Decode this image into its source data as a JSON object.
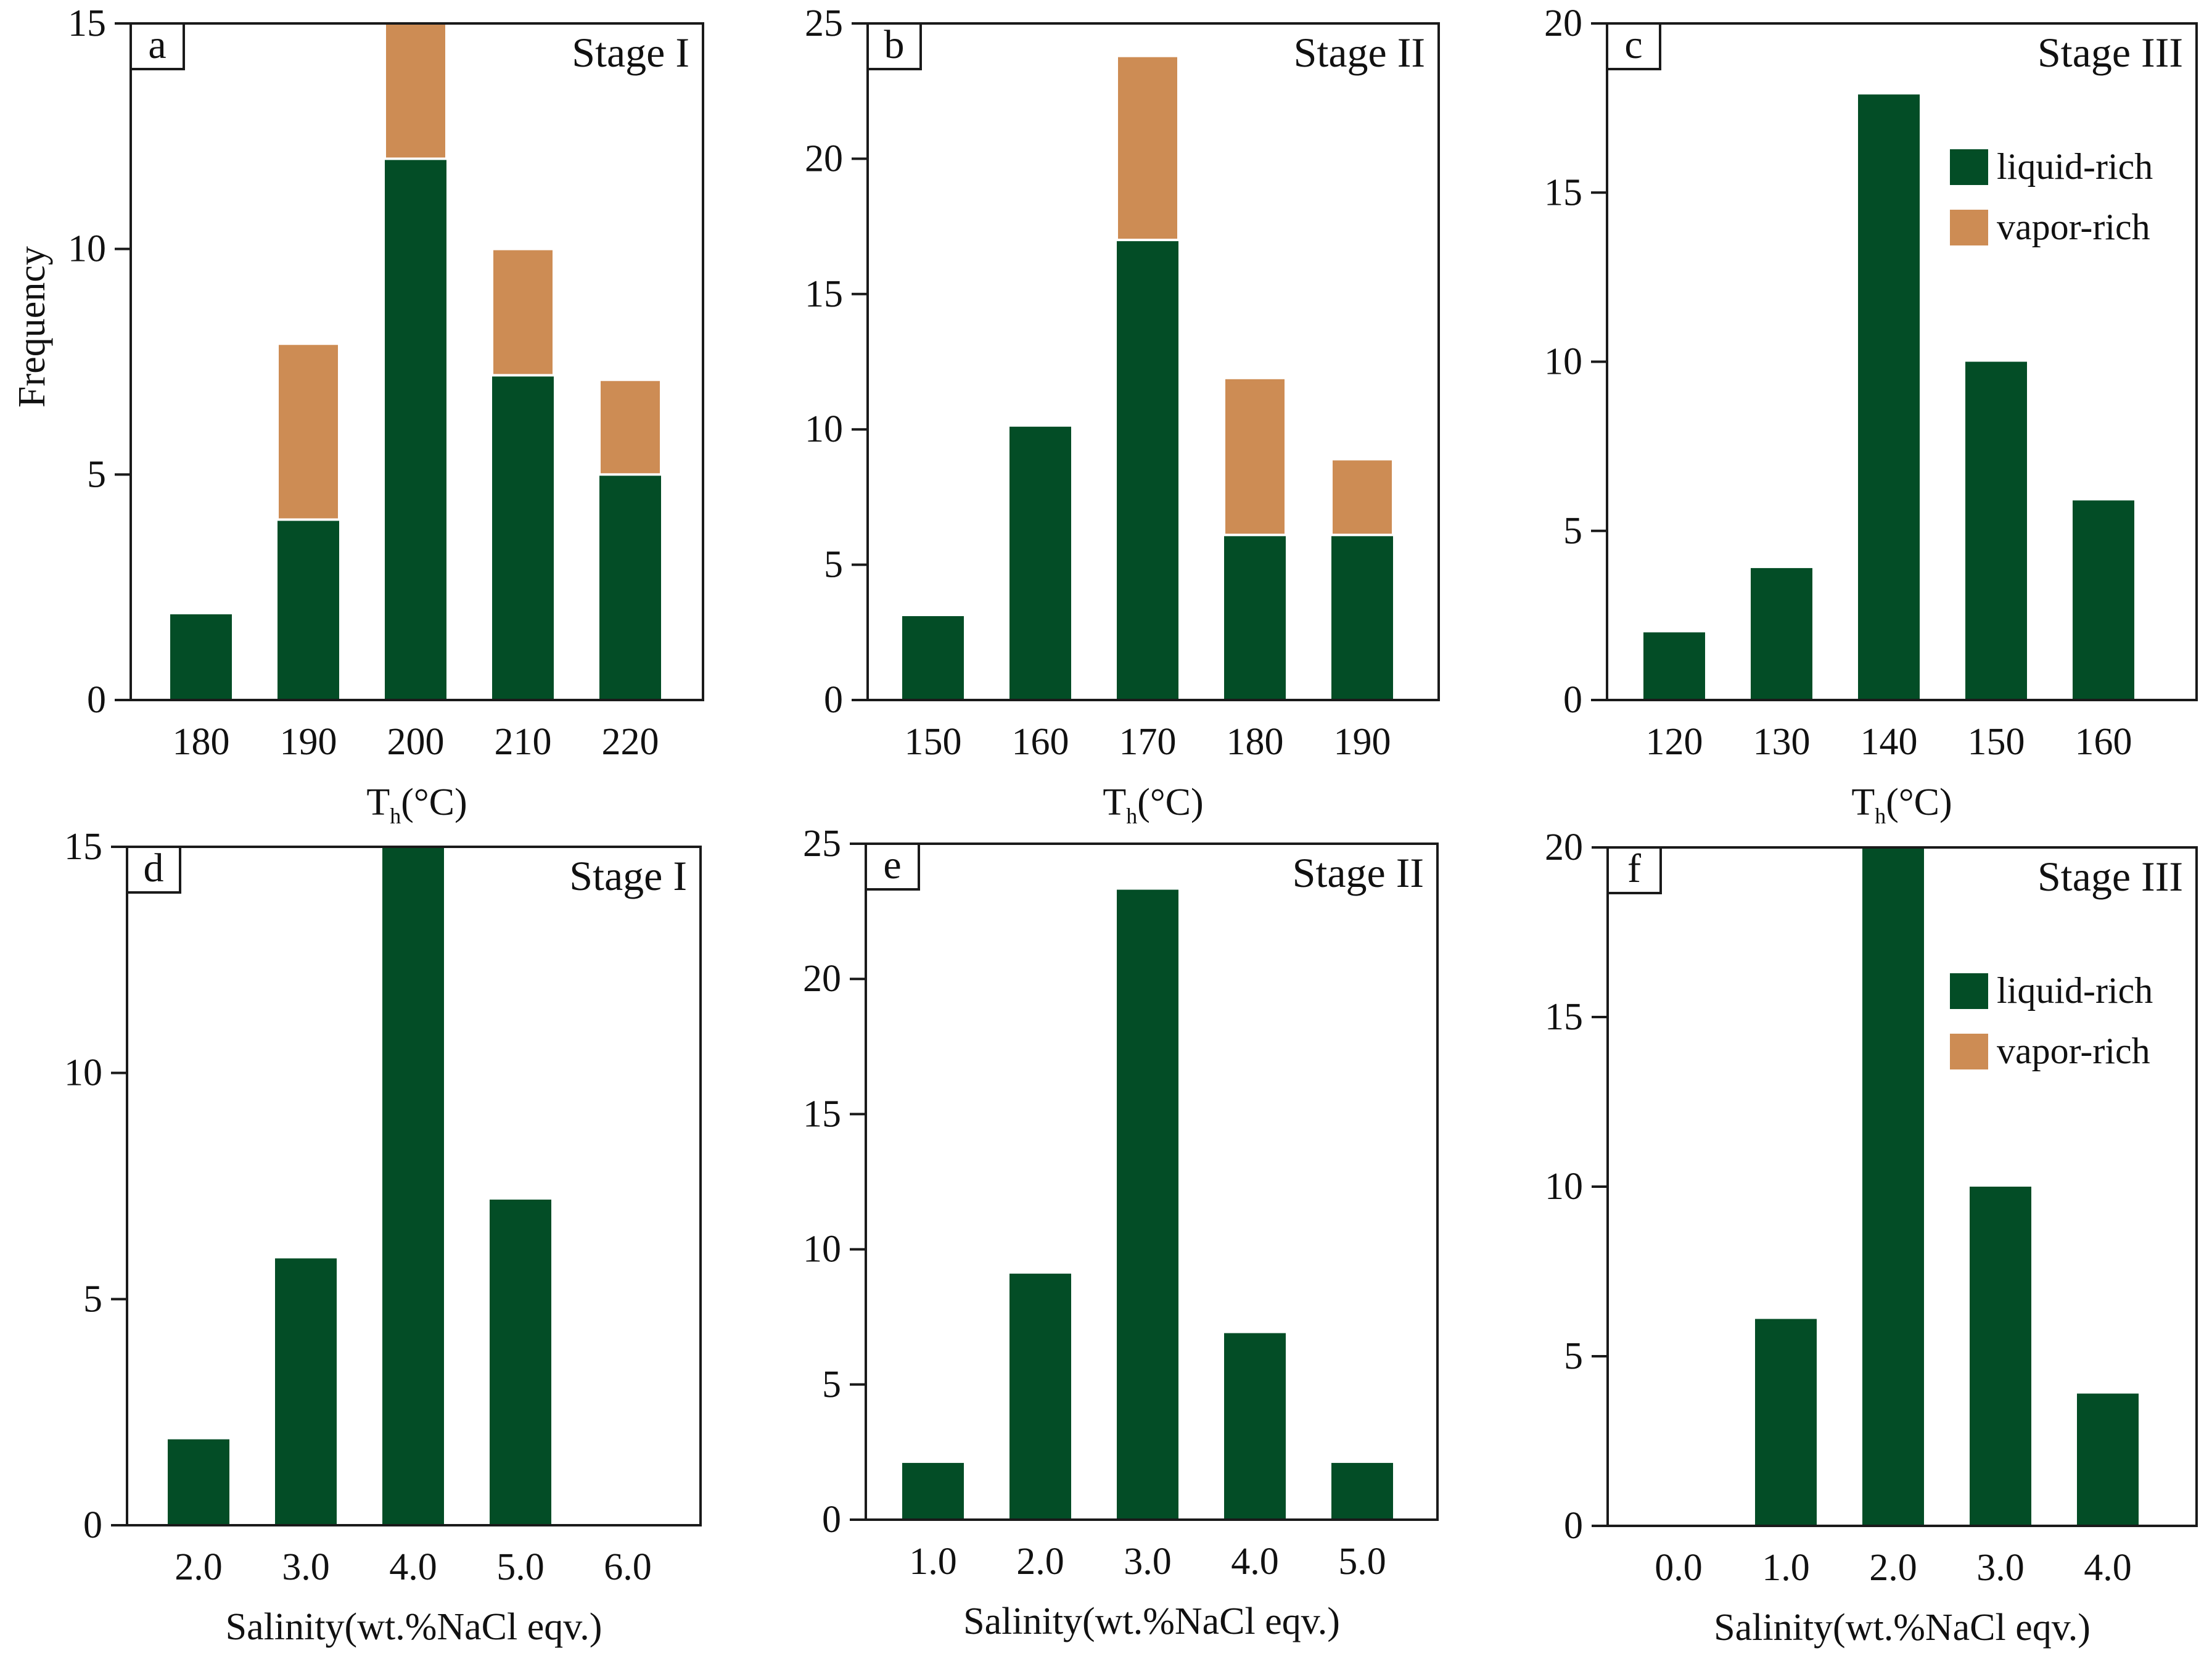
{
  "colors": {
    "liquid": "#034d26",
    "vapor": "#cd8c54",
    "axis": "#1a1a1a",
    "background": "#ffffff"
  },
  "y_axis_label": "Frequency",
  "legend": {
    "liquid": "liquid-rich",
    "vapor": "vapor-rich"
  },
  "chart_data": [
    {
      "panel": "a",
      "type": "bar",
      "stacked": true,
      "title": "Stage I",
      "xlabel_main": "T",
      "xlabel_sub": "h",
      "xlabel_unit": "(°C)",
      "ylabel": "Frequency",
      "ylim": [
        0,
        15
      ],
      "yticks": [
        0,
        5,
        10,
        15
      ],
      "categories": [
        "180",
        "190",
        "200",
        "210",
        "220"
      ],
      "series": [
        {
          "name": "liquid-rich",
          "values": [
            1.9,
            4.0,
            12.0,
            7.2,
            5.0
          ]
        },
        {
          "name": "vapor-rich",
          "values": [
            0,
            3.9,
            3.0,
            2.8,
            2.1
          ]
        }
      ]
    },
    {
      "panel": "b",
      "type": "bar",
      "stacked": true,
      "title": "Stage II",
      "xlabel_main": "T",
      "xlabel_sub": "h",
      "xlabel_unit": "(°C)",
      "ylabel": "",
      "ylim": [
        0,
        25
      ],
      "yticks": [
        0,
        5,
        10,
        15,
        20,
        25
      ],
      "categories": [
        "150",
        "160",
        "170",
        "180",
        "190"
      ],
      "series": [
        {
          "name": "liquid-rich",
          "values": [
            3.1,
            10.1,
            17.0,
            6.1,
            6.1
          ]
        },
        {
          "name": "vapor-rich",
          "values": [
            0,
            0,
            6.8,
            5.8,
            2.8
          ]
        }
      ]
    },
    {
      "panel": "c",
      "type": "bar",
      "stacked": true,
      "title": "Stage III",
      "xlabel_main": "T",
      "xlabel_sub": "h",
      "xlabel_unit": "(°C)",
      "ylabel": "",
      "ylim": [
        0,
        20
      ],
      "yticks": [
        0,
        5,
        10,
        15,
        20
      ],
      "categories": [
        "120",
        "130",
        "140",
        "150",
        "160"
      ],
      "legend": true,
      "series": [
        {
          "name": "liquid-rich",
          "values": [
            2.0,
            3.9,
            17.9,
            10.0,
            5.9
          ]
        },
        {
          "name": "vapor-rich",
          "values": [
            0,
            0,
            0,
            0,
            0
          ]
        }
      ]
    },
    {
      "panel": "d",
      "type": "bar",
      "stacked": false,
      "title": "Stage I",
      "xlabel": "Salinity(wt.%NaCl eqv.)",
      "ylabel": "",
      "ylim": [
        0,
        15
      ],
      "yticks": [
        0,
        5,
        10,
        15
      ],
      "categories": [
        "2.0",
        "3.0",
        "4.0",
        "5.0",
        "6.0"
      ],
      "series": [
        {
          "name": "liquid-rich",
          "values": [
            1.9,
            5.9,
            15.0,
            7.2,
            0
          ]
        }
      ]
    },
    {
      "panel": "e",
      "type": "bar",
      "stacked": false,
      "title": "Stage II",
      "xlabel": "Salinity(wt.%NaCl eqv.)",
      "ylabel": "",
      "ylim": [
        0,
        25
      ],
      "yticks": [
        0,
        5,
        10,
        15,
        20,
        25
      ],
      "categories": [
        "1.0",
        "2.0",
        "3.0",
        "4.0",
        "5.0"
      ],
      "series": [
        {
          "name": "liquid-rich",
          "values": [
            2.1,
            9.1,
            23.3,
            6.9,
            2.1
          ]
        }
      ]
    },
    {
      "panel": "f",
      "type": "bar",
      "stacked": false,
      "title": "Stage III",
      "xlabel": "Salinity(wt.%NaCl eqv.)",
      "ylabel": "",
      "ylim": [
        0,
        20
      ],
      "yticks": [
        0,
        5,
        10,
        15,
        20
      ],
      "categories": [
        "0.0",
        "1.0",
        "2.0",
        "3.0",
        "4.0"
      ],
      "legend": true,
      "series": [
        {
          "name": "liquid-rich",
          "values": [
            0,
            6.1,
            20.0,
            10.0,
            3.9
          ]
        }
      ]
    }
  ]
}
